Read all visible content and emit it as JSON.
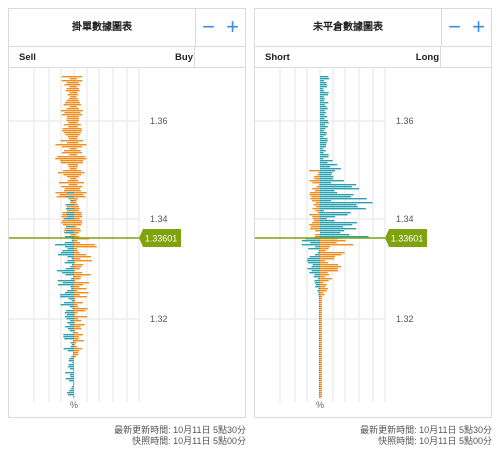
{
  "panels": [
    {
      "title": "掛單數據圖表",
      "left_label": "Sell",
      "right_label": "Buy",
      "zoom_out": "−",
      "zoom_in": "+",
      "percent_label": "%",
      "price_ticks": [
        "1.36",
        "1.34",
        "1.32"
      ],
      "current_price": "1.33601",
      "colors": {
        "left": "#29a3b3",
        "right": "#f28c1c",
        "price_line": "#7fa20f"
      }
    },
    {
      "title": "未平倉數據圖表",
      "left_label": "Short",
      "right_label": "Long",
      "zoom_out": "−",
      "zoom_in": "+",
      "percent_label": "%",
      "price_ticks": [
        "1.36",
        "1.34",
        "1.32"
      ],
      "current_price": "1.33601",
      "colors": {
        "left": "#f28c1c",
        "right": "#29a3b3",
        "price_line": "#7fa20f"
      }
    }
  ],
  "footer": {
    "updated": "最新更新時間: 10月11日 5點30分",
    "snapshot": "快照時間: 10月11日 5點00分"
  }
}
